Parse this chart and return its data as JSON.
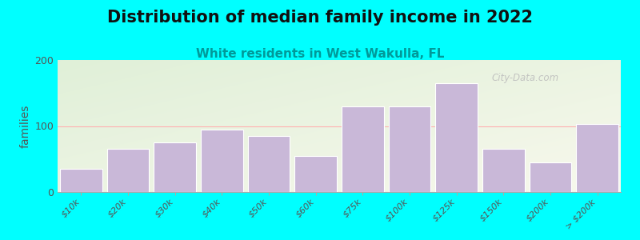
{
  "title": "Distribution of median family income in 2022",
  "subtitle": "White residents in West Wakulla, FL",
  "ylabel": "families",
  "categories": [
    "$10k",
    "$20k",
    "$30k",
    "$40k",
    "$50k",
    "$60k",
    "$75k",
    "$100k",
    "$125k",
    "$150k",
    "$200k",
    "> $200k"
  ],
  "values": [
    35,
    65,
    75,
    95,
    85,
    55,
    130,
    130,
    165,
    65,
    45,
    103
  ],
  "bar_color": "#c9b8d8",
  "bar_edge_color": "#ffffff",
  "ylim": [
    0,
    200
  ],
  "yticks": [
    0,
    100,
    200
  ],
  "background_outer": "#00ffff",
  "plot_bg_tl": [
    0.878,
    0.941,
    0.847
  ],
  "plot_bg_br": [
    0.973,
    0.973,
    0.929
  ],
  "title_fontsize": 15,
  "subtitle_fontsize": 11,
  "subtitle_color": "#009999",
  "ylabel_fontsize": 10,
  "watermark": "City-Data.com",
  "title_color": "#111111"
}
